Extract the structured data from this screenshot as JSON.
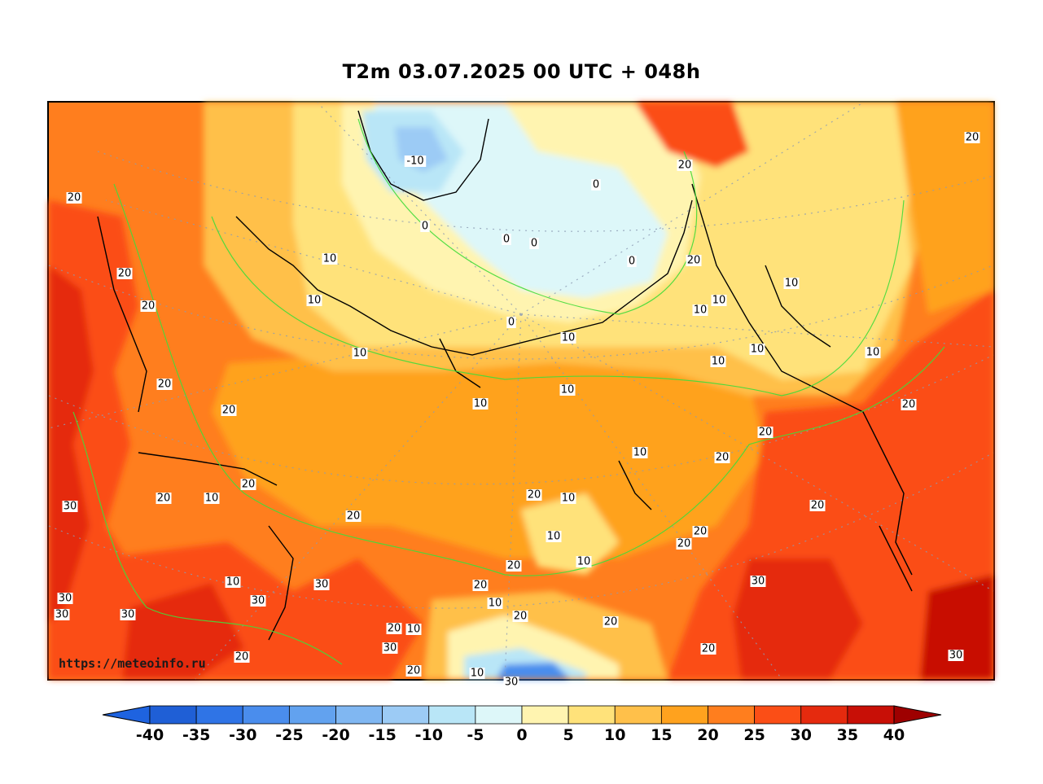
{
  "title": "T2m 03.07.2025 00 UTC + 048h",
  "watermark": "https://meteoinfo.ru",
  "colorbar": {
    "levels": [
      -40,
      -35,
      -30,
      -25,
      -20,
      -15,
      -10,
      -5,
      0,
      5,
      10,
      15,
      20,
      25,
      30,
      35,
      40
    ],
    "labels": [
      "-40",
      "-35",
      "-30",
      "-25",
      "-20",
      "-15",
      "-10",
      "-5",
      "0",
      "5",
      "10",
      "15",
      "20",
      "25",
      "30",
      "35",
      "40"
    ],
    "colors": [
      "#1f5fd6",
      "#2f74e6",
      "#4a8ded",
      "#62a2ef",
      "#80b7f2",
      "#9ccbf5",
      "#b9e6f7",
      "#ddf7f9",
      "#fff4b0",
      "#ffe27a",
      "#ffc04a",
      "#ffa21e",
      "#ff7e1e",
      "#fb4e16",
      "#e52a0e",
      "#c80f06"
    ],
    "under_color": "#1e63e0",
    "over_color": "#9e0000"
  },
  "contour_labels": [
    {
      "text": "-10"
    },
    {
      "text": "0"
    },
    {
      "text": "0"
    },
    {
      "text": "0"
    },
    {
      "text": "0"
    },
    {
      "text": "0"
    },
    {
      "text": "0"
    },
    {
      "text": "10"
    },
    {
      "text": "10"
    },
    {
      "text": "10"
    },
    {
      "text": "10"
    },
    {
      "text": "10"
    },
    {
      "text": "10"
    },
    {
      "text": "10"
    },
    {
      "text": "10"
    },
    {
      "text": "10"
    },
    {
      "text": "10"
    },
    {
      "text": "10"
    },
    {
      "text": "10"
    },
    {
      "text": "10"
    },
    {
      "text": "10"
    },
    {
      "text": "10"
    },
    {
      "text": "10"
    },
    {
      "text": "10"
    },
    {
      "text": "10"
    },
    {
      "text": "10"
    },
    {
      "text": "10"
    },
    {
      "text": "10"
    },
    {
      "text": "20"
    },
    {
      "text": "20"
    },
    {
      "text": "20"
    },
    {
      "text": "20"
    },
    {
      "text": "20"
    },
    {
      "text": "20"
    },
    {
      "text": "20"
    },
    {
      "text": "20"
    },
    {
      "text": "20"
    },
    {
      "text": "20"
    },
    {
      "text": "20"
    },
    {
      "text": "20"
    },
    {
      "text": "20"
    },
    {
      "text": "20"
    },
    {
      "text": "20"
    },
    {
      "text": "20"
    },
    {
      "text": "20"
    },
    {
      "text": "20"
    },
    {
      "text": "20"
    },
    {
      "text": "20"
    },
    {
      "text": "20"
    },
    {
      "text": "20"
    },
    {
      "text": "20"
    },
    {
      "text": "20"
    },
    {
      "text": "20"
    },
    {
      "text": "20"
    },
    {
      "text": "30"
    },
    {
      "text": "30"
    },
    {
      "text": "30"
    },
    {
      "text": "30"
    },
    {
      "text": "30"
    },
    {
      "text": "30"
    },
    {
      "text": "30"
    },
    {
      "text": "30"
    },
    {
      "text": "30"
    },
    {
      "text": "30"
    }
  ]
}
